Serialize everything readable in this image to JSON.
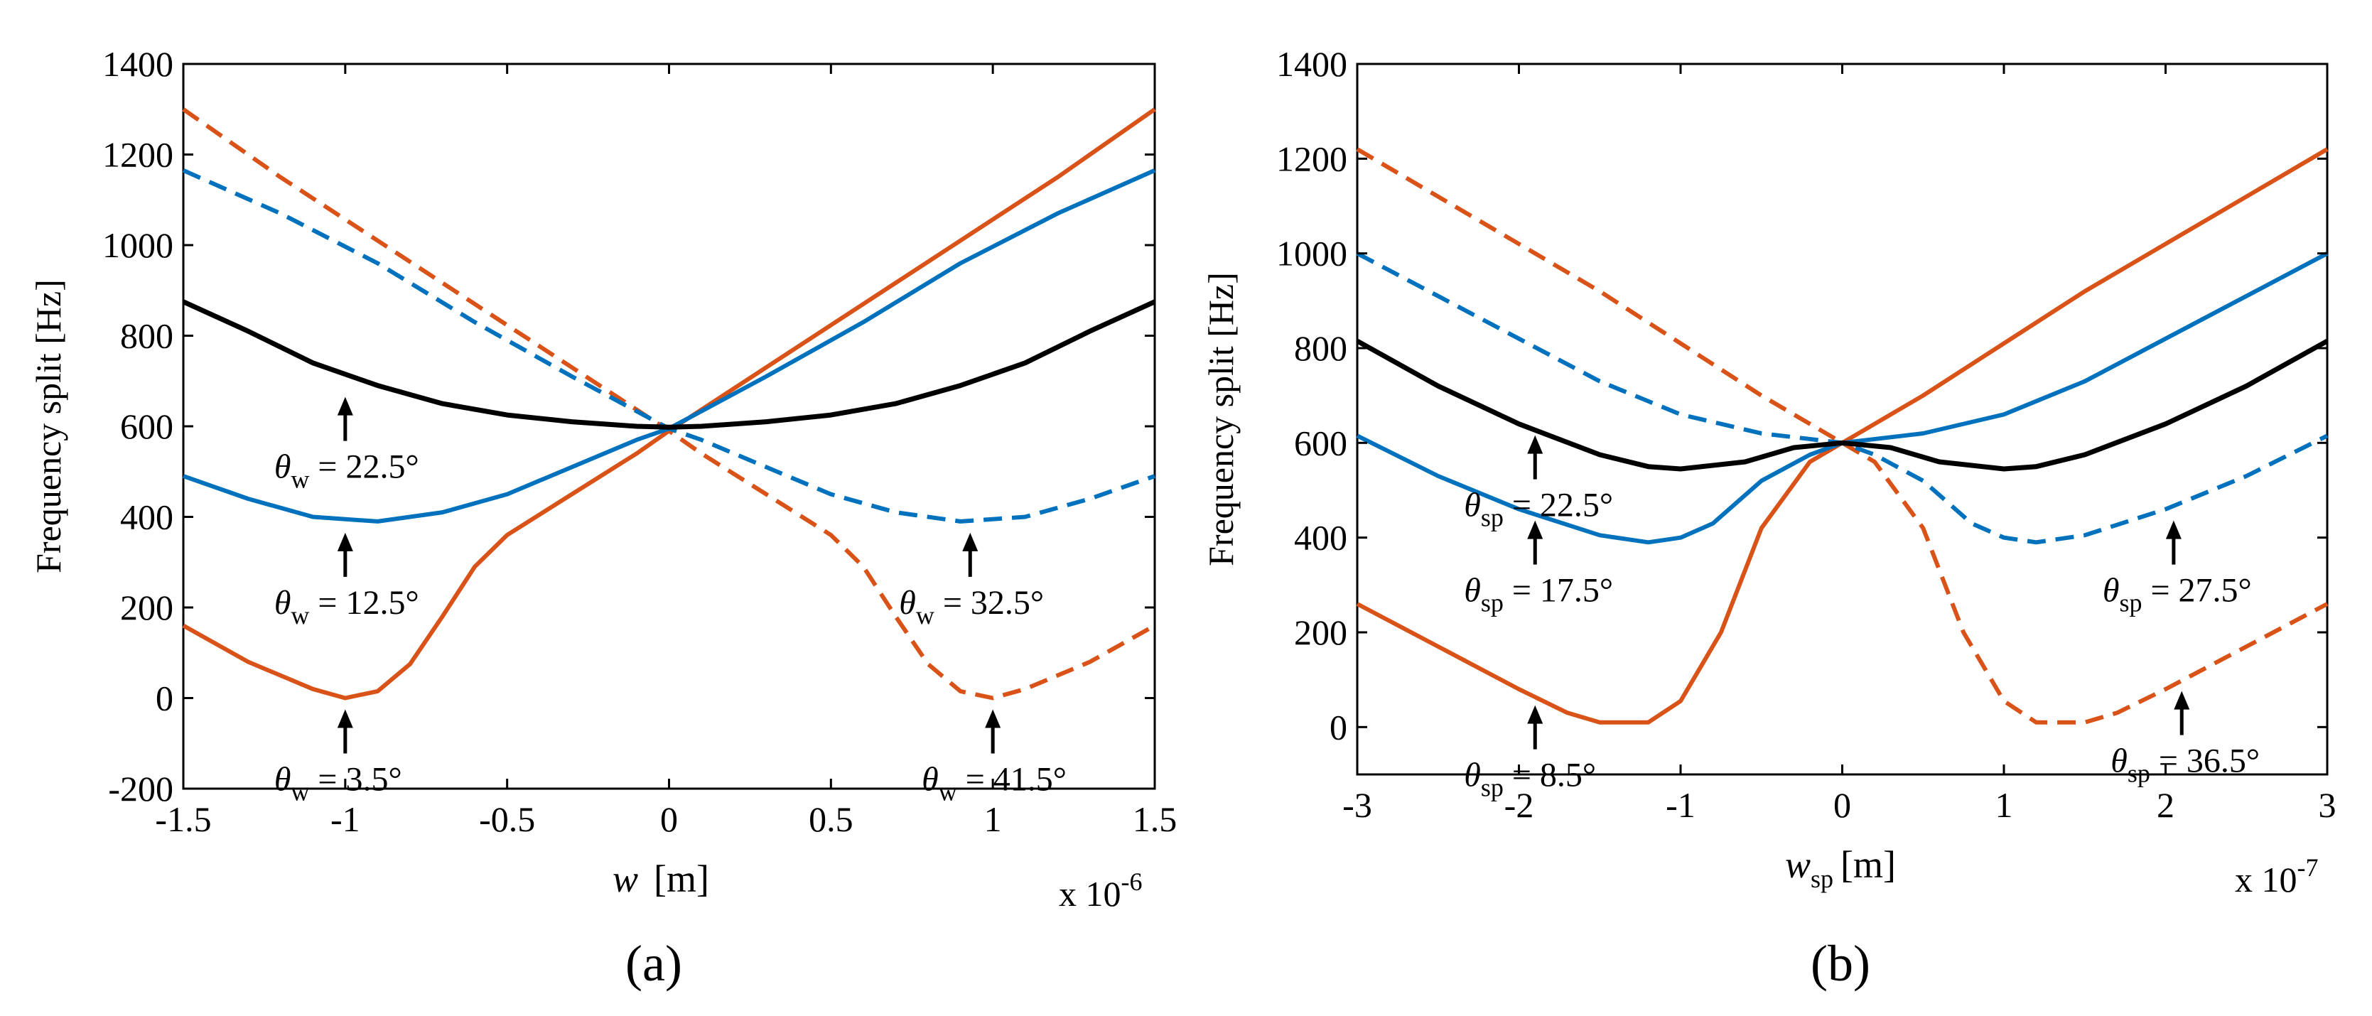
{
  "chart_data": [
    {
      "type": "line",
      "panel_label": "(a)",
      "xlabel": {
        "main": "w",
        "unit": "[m]"
      },
      "ylabel": "Frequency split  [Hz]",
      "x_multiplier": {
        "base": "x 10",
        "exp": "-6"
      },
      "xlim": [
        -1.5,
        1.5
      ],
      "ylim": [
        -200,
        1400
      ],
      "x_ticks": [
        -1.5,
        -1,
        -0.5,
        0,
        0.5,
        1,
        1.5
      ],
      "x_tick_labels": [
        "-1.5",
        "-1",
        "-0.5",
        "0",
        "0.5",
        "1",
        "1.5"
      ],
      "y_ticks": [
        -200,
        0,
        200,
        400,
        600,
        800,
        1000,
        1200,
        1400
      ],
      "y_tick_labels": [
        "-200",
        "0",
        "200",
        "400",
        "600",
        "800",
        "1000",
        "1200",
        "1400"
      ],
      "series": [
        {
          "name": "θw = 3.5°",
          "color": "#d95319",
          "dash": false,
          "x": [
            -1.5,
            -1.3,
            -1.1,
            -1.0,
            -0.9,
            -0.8,
            -0.7,
            -0.6,
            -0.5,
            -0.3,
            -0.1,
            0,
            0.3,
            0.6,
            0.9,
            1.2,
            1.5
          ],
          "y": [
            160,
            80,
            20,
            0,
            15,
            75,
            180,
            290,
            360,
            450,
            540,
            590,
            730,
            870,
            1010,
            1150,
            1300
          ]
        },
        {
          "name": "θw = 41.5°",
          "color": "#d95319",
          "dash": true,
          "x": [
            -1.5,
            -1.2,
            -0.9,
            -0.6,
            -0.3,
            0,
            0.1,
            0.3,
            0.5,
            0.6,
            0.7,
            0.8,
            0.9,
            1.0,
            1.1,
            1.3,
            1.5
          ],
          "y": [
            1300,
            1150,
            1010,
            870,
            730,
            590,
            540,
            450,
            360,
            290,
            180,
            75,
            15,
            0,
            20,
            80,
            160
          ]
        },
        {
          "name": "θw = 12.5°",
          "color": "#0072bd",
          "dash": false,
          "x": [
            -1.5,
            -1.3,
            -1.1,
            -0.9,
            -0.7,
            -0.5,
            -0.3,
            -0.1,
            0,
            0.3,
            0.6,
            0.9,
            1.2,
            1.5
          ],
          "y": [
            490,
            440,
            400,
            390,
            410,
            450,
            510,
            570,
            595,
            710,
            830,
            960,
            1070,
            1165
          ]
        },
        {
          "name": "θw = 32.5°",
          "color": "#0072bd",
          "dash": true,
          "x": [
            -1.5,
            -1.2,
            -0.9,
            -0.6,
            -0.3,
            0,
            0.1,
            0.3,
            0.5,
            0.7,
            0.9,
            1.1,
            1.3,
            1.5
          ],
          "y": [
            1165,
            1070,
            960,
            830,
            710,
            595,
            570,
            510,
            450,
            410,
            390,
            400,
            440,
            490
          ]
        },
        {
          "name": "θw = 22.5°",
          "color": "#000000",
          "dash": false,
          "x": [
            -1.5,
            -1.3,
            -1.1,
            -0.9,
            -0.7,
            -0.5,
            -0.3,
            -0.1,
            0,
            0.1,
            0.3,
            0.5,
            0.7,
            0.9,
            1.1,
            1.3,
            1.5
          ],
          "y": [
            875,
            810,
            740,
            690,
            650,
            625,
            610,
            600,
            598,
            600,
            610,
            625,
            650,
            690,
            740,
            810,
            875
          ]
        }
      ],
      "annotations": [
        {
          "symbol": "θ",
          "sub": "w",
          "value": " = 22.5°",
          "x": -1.0,
          "y": 690
        },
        {
          "symbol": "θ",
          "sub": "w",
          "value": " = 12.5°",
          "x": -1.0,
          "y": 390
        },
        {
          "symbol": "θ",
          "sub": "w",
          "value": " = 3.5°",
          "x": -1.0,
          "y": 0
        },
        {
          "symbol": "θ",
          "sub": "w",
          "value": " = 32.5°",
          "x": 0.93,
          "y": 390
        },
        {
          "symbol": "θ",
          "sub": "w",
          "value": " = 41.5°",
          "x": 1.0,
          "y": 0
        }
      ]
    },
    {
      "type": "line",
      "panel_label": "(b)",
      "xlabel": {
        "main": "w",
        "sub": "sp",
        "unit": "[m]"
      },
      "ylabel": "Frequency split  [Hz]",
      "x_multiplier": {
        "base": "x 10",
        "exp": "-7"
      },
      "xlim": [
        -3,
        3
      ],
      "ylim": [
        -100,
        1400
      ],
      "x_ticks": [
        -3,
        -2,
        -1,
        0,
        1,
        2,
        3
      ],
      "x_tick_labels": [
        "-3",
        "-2",
        "-1",
        "0",
        "1",
        "2",
        "3"
      ],
      "y_ticks": [
        0,
        200,
        400,
        600,
        800,
        1000,
        1200,
        1400
      ],
      "y_tick_labels": [
        "0",
        "200",
        "400",
        "600",
        "800",
        "1000",
        "1200",
        "1400"
      ],
      "series": [
        {
          "name": "θsp = 8.5°",
          "color": "#d95319",
          "dash": false,
          "x": [
            -3,
            -2.5,
            -2,
            -1.7,
            -1.5,
            -1.2,
            -1.0,
            -0.75,
            -0.5,
            -0.2,
            0,
            0.5,
            1.0,
            1.5,
            2.0,
            2.5,
            3
          ],
          "y": [
            260,
            170,
            80,
            30,
            10,
            10,
            55,
            200,
            420,
            560,
            600,
            700,
            810,
            920,
            1020,
            1120,
            1220
          ]
        },
        {
          "name": "θsp = 36.5°",
          "color": "#d95319",
          "dash": true,
          "x": [
            -3,
            -2.5,
            -2,
            -1.5,
            -1,
            -0.5,
            0,
            0.2,
            0.5,
            0.75,
            1.0,
            1.2,
            1.5,
            1.7,
            2.0,
            2.5,
            3
          ],
          "y": [
            1220,
            1120,
            1020,
            920,
            810,
            700,
            600,
            560,
            420,
            200,
            55,
            10,
            10,
            30,
            80,
            170,
            260
          ]
        },
        {
          "name": "θsp = 17.5°",
          "color": "#0072bd",
          "dash": false,
          "x": [
            -3,
            -2.5,
            -2,
            -1.5,
            -1.2,
            -1,
            -0.8,
            -0.5,
            -0.2,
            0,
            0.5,
            1,
            1.5,
            2,
            2.5,
            3
          ],
          "y": [
            615,
            530,
            460,
            405,
            390,
            400,
            430,
            520,
            575,
            600,
            620,
            660,
            730,
            820,
            910,
            1000
          ]
        },
        {
          "name": "θsp = 27.5°",
          "color": "#0072bd",
          "dash": true,
          "x": [
            -3,
            -2.5,
            -2,
            -1.5,
            -1,
            -0.5,
            0,
            0.2,
            0.5,
            0.8,
            1,
            1.2,
            1.5,
            2,
            2.5,
            3
          ],
          "y": [
            1000,
            910,
            820,
            730,
            660,
            620,
            600,
            575,
            520,
            430,
            400,
            390,
            405,
            460,
            530,
            615
          ]
        },
        {
          "name": "θsp = 22.5°",
          "color": "#000000",
          "dash": false,
          "x": [
            -3,
            -2.5,
            -2,
            -1.5,
            -1.2,
            -1,
            -0.6,
            -0.3,
            0,
            0.3,
            0.6,
            1,
            1.2,
            1.5,
            2,
            2.5,
            3
          ],
          "y": [
            815,
            720,
            640,
            575,
            550,
            545,
            560,
            590,
            600,
            590,
            560,
            545,
            550,
            575,
            640,
            720,
            815
          ]
        }
      ],
      "annotations": [
        {
          "symbol": "θ",
          "sub": "sp",
          "value": " = 22.5°",
          "x": -1.9,
          "y": 640
        },
        {
          "symbol": "θ",
          "sub": "sp",
          "value": " = 17.5°",
          "x": -1.9,
          "y": 460
        },
        {
          "symbol": "θ",
          "sub": "sp",
          "value": " = 8.5°",
          "x": -1.9,
          "y": 70
        },
        {
          "symbol": "θ",
          "sub": "sp",
          "value": " = 27.5°",
          "x": 2.05,
          "y": 460
        },
        {
          "symbol": "θ",
          "sub": "sp",
          "value": " = 36.5°",
          "x": 2.1,
          "y": 100
        }
      ]
    }
  ]
}
